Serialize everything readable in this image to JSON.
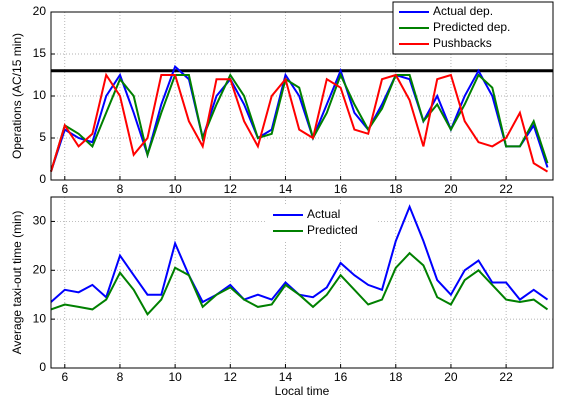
{
  "chart_data": [
    {
      "type": "line",
      "ylabel": "Operations (AC/15 min)",
      "legend": "upper right",
      "grid": true,
      "x": [
        5.5,
        6,
        6.5,
        7,
        7.5,
        8,
        8.5,
        9,
        9.5,
        10,
        10.5,
        11,
        11.5,
        12,
        12.5,
        13,
        13.5,
        14,
        14.5,
        15,
        15.5,
        16,
        16.5,
        17,
        17.5,
        18,
        18.5,
        19,
        19.5,
        20,
        20.5,
        21,
        21.5,
        22,
        22.5,
        23,
        23.5
      ],
      "xlim": [
        5.5,
        23.7
      ],
      "xticks": [
        6,
        8,
        10,
        12,
        14,
        16,
        18,
        20,
        22
      ],
      "ylim": [
        0,
        20
      ],
      "yticks": [
        0,
        5,
        10,
        15,
        20
      ],
      "hline": 13,
      "hline_color": "#000000",
      "series": [
        {
          "name": "Actual dep.",
          "color": "#0000ff",
          "values": [
            1,
            6,
            5,
            4.5,
            10,
            12.5,
            8,
            3,
            9,
            13.5,
            12,
            5,
            10,
            12,
            9,
            5,
            6,
            12.5,
            10,
            5,
            9,
            13,
            8,
            6,
            9,
            12.5,
            12,
            7,
            10,
            6,
            10,
            13,
            10,
            4,
            4,
            6.5,
            1.5
          ]
        },
        {
          "name": "Predicted dep.",
          "color": "#008000",
          "values": [
            1,
            6.5,
            5.5,
            4,
            8,
            12,
            10,
            3,
            8,
            12.5,
            12.5,
            5,
            9,
            12.5,
            10,
            5,
            5.5,
            12,
            11,
            5,
            8,
            12.5,
            9,
            6,
            8.5,
            12.5,
            12.5,
            7,
            9,
            6,
            9,
            12.5,
            11,
            4,
            4,
            7,
            2
          ]
        },
        {
          "name": "Pushbacks",
          "color": "#ff0000",
          "values": [
            1,
            6.5,
            4,
            5.5,
            12.5,
            10,
            3,
            5,
            12.5,
            12.5,
            7,
            4,
            12,
            12,
            7,
            4,
            10,
            12,
            6,
            5,
            12,
            11,
            6,
            5.5,
            12,
            12.5,
            9.5,
            4,
            12,
            12.5,
            7,
            4.5,
            4,
            5,
            8,
            2,
            1
          ]
        }
      ]
    },
    {
      "type": "line",
      "ylabel": "Average taxi-out time (min)",
      "xlabel": "Local time",
      "legend": "upper center",
      "grid": true,
      "x": [
        5.5,
        6,
        6.5,
        7,
        7.5,
        8,
        8.5,
        9,
        9.5,
        10,
        10.5,
        11,
        11.5,
        12,
        12.5,
        13,
        13.5,
        14,
        14.5,
        15,
        15.5,
        16,
        16.5,
        17,
        17.5,
        18,
        18.5,
        19,
        19.5,
        20,
        20.5,
        21,
        21.5,
        22,
        22.5,
        23,
        23.5
      ],
      "xlim": [
        5.5,
        23.7
      ],
      "xticks": [
        6,
        8,
        10,
        12,
        14,
        16,
        18,
        20,
        22
      ],
      "ylim": [
        0,
        35
      ],
      "yticks": [
        0,
        10,
        20,
        30
      ],
      "series": [
        {
          "name": "Actual",
          "color": "#0000ff",
          "values": [
            13.5,
            16,
            15.5,
            17,
            14.5,
            23,
            19,
            15,
            15,
            25.5,
            19,
            13.5,
            15,
            17,
            14,
            15,
            14,
            17.5,
            15,
            14.5,
            16.5,
            21.5,
            19,
            17,
            16,
            26,
            33,
            26,
            18,
            15,
            20,
            22,
            17.5,
            17.5,
            14,
            16,
            14
          ]
        },
        {
          "name": "Predicted",
          "color": "#008000",
          "values": [
            12,
            13,
            12.5,
            12,
            14,
            19.5,
            16,
            11,
            14,
            20.5,
            19,
            12.5,
            15,
            16.5,
            14,
            12.5,
            13,
            17,
            15,
            12.5,
            15,
            19,
            16,
            13,
            14,
            20.5,
            23.5,
            21,
            14.5,
            13,
            18,
            20,
            17,
            14,
            13.5,
            14,
            12
          ]
        }
      ]
    }
  ]
}
